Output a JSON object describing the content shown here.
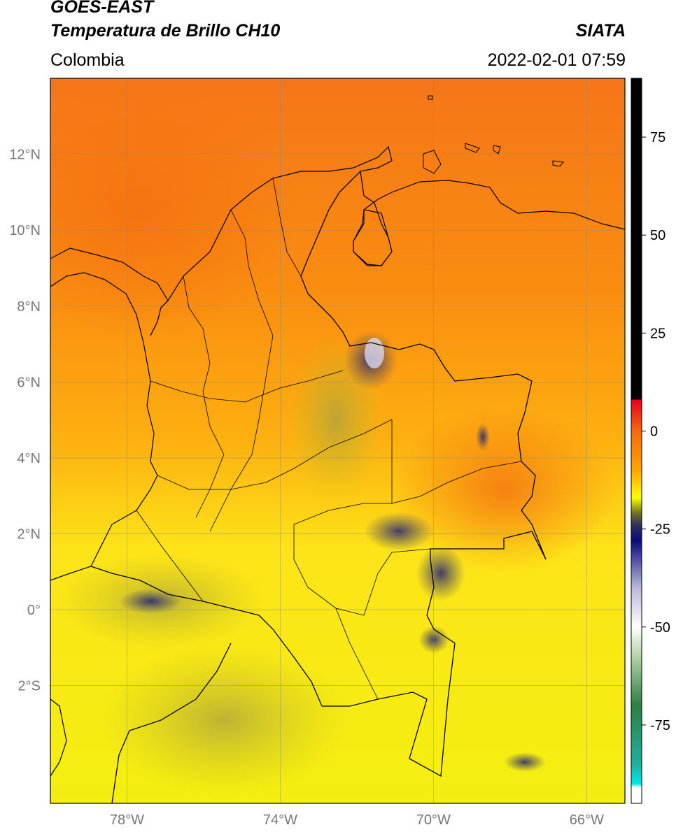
{
  "header": {
    "title_line1": "GOES-EAST",
    "title_line2": "Temperatura de Brillo CH10",
    "region": "Colombia",
    "brand": "SIATA",
    "datetime": "2022-02-01 07:59"
  },
  "map": {
    "lon_range": [
      -80,
      -65
    ],
    "lat_range": [
      -5.1,
      14
    ],
    "lon_ticks": [
      {
        "value": -78,
        "label": "78°W"
      },
      {
        "value": -74,
        "label": "74°W"
      },
      {
        "value": -70,
        "label": "70°W"
      },
      {
        "value": -66,
        "label": "66°W"
      }
    ],
    "lat_ticks": [
      {
        "value": 12,
        "label": "12°N"
      },
      {
        "value": 10,
        "label": "10°N"
      },
      {
        "value": 8,
        "label": "8°N"
      },
      {
        "value": 6,
        "label": "6°N"
      },
      {
        "value": 4,
        "label": "4°N"
      },
      {
        "value": 2,
        "label": "2°N"
      },
      {
        "value": 0,
        "label": "0°"
      },
      {
        "value": -2,
        "label": "2°S"
      }
    ],
    "gridlines": true
  },
  "colorbar": {
    "range": [
      -95,
      90
    ],
    "ticks": [
      {
        "value": 75,
        "label": "75"
      },
      {
        "value": 50,
        "label": "50"
      },
      {
        "value": 25,
        "label": "25"
      },
      {
        "value": 0,
        "label": "0"
      },
      {
        "value": -25,
        "label": "-25"
      },
      {
        "value": -50,
        "label": "-50"
      },
      {
        "value": -75,
        "label": "-75"
      }
    ],
    "stops": [
      {
        "v": 90,
        "c": "#000000"
      },
      {
        "v": 8,
        "c": "#000000"
      },
      {
        "v": 8,
        "c": "#e8001a"
      },
      {
        "v": 0,
        "c": "#f26a10"
      },
      {
        "v": -10,
        "c": "#ffa500"
      },
      {
        "v": -17,
        "c": "#ffff00"
      },
      {
        "v": -21,
        "c": "#6f6f20"
      },
      {
        "v": -24,
        "c": "#303060"
      },
      {
        "v": -28,
        "c": "#0a0a80"
      },
      {
        "v": -40,
        "c": "#b8b8d8"
      },
      {
        "v": -50,
        "c": "#ffffff"
      },
      {
        "v": -58,
        "c": "#aed0a0"
      },
      {
        "v": -70,
        "c": "#2e8040"
      },
      {
        "v": -85,
        "c": "#20b0a0"
      },
      {
        "v": -90,
        "c": "#00e8e8"
      },
      {
        "v": -91,
        "c": "#ffffff"
      },
      {
        "v": -95,
        "c": "#ffffff"
      }
    ]
  }
}
